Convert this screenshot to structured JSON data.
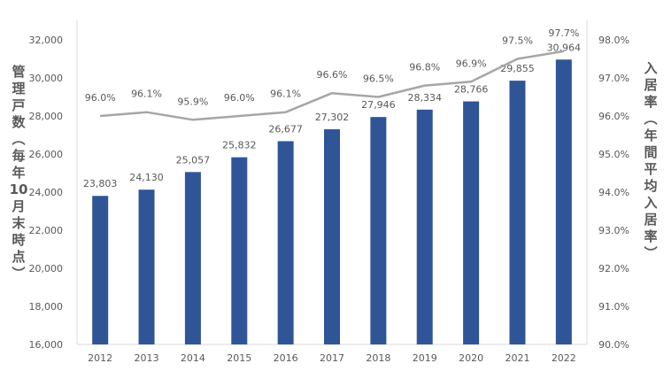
{
  "chart_data": {
    "type": "bar",
    "categories": [
      "2012",
      "2013",
      "2014",
      "2015",
      "2016",
      "2017",
      "2018",
      "2019",
      "2020",
      "2021",
      "2022"
    ],
    "series": [
      {
        "type": "bar",
        "axis": "left",
        "color": "#2f5597",
        "values": [
          23803,
          24130,
          25057,
          25832,
          26677,
          27302,
          27946,
          28334,
          28766,
          29855,
          30964
        ],
        "labels": [
          "23,803",
          "24,130",
          "25,057",
          "25,832",
          "26,677",
          "27,302",
          "27,946",
          "28,334",
          "28,766",
          "29,855",
          "30,964"
        ]
      },
      {
        "type": "line",
        "axis": "right",
        "color": "#a6a6a6",
        "values": [
          96.0,
          96.1,
          95.9,
          96.0,
          96.1,
          96.6,
          96.5,
          96.8,
          96.9,
          97.5,
          97.7
        ],
        "labels": [
          "96.0%",
          "96.1%",
          "95.9%",
          "96.0%",
          "96.1%",
          "96.6%",
          "96.5%",
          "96.8%",
          "96.9%",
          "97.5%",
          "97.7%"
        ]
      }
    ],
    "ylabel": "管理戸数（毎年10月末時点）",
    "ylabel_right": "入居率（年間平均入居率）",
    "ylim": [
      16000,
      32000
    ],
    "y_ticks": [
      16000,
      18000,
      20000,
      22000,
      24000,
      26000,
      28000,
      30000,
      32000
    ],
    "y_tick_labels": [
      "16,000",
      "18,000",
      "20,000",
      "22,000",
      "24,000",
      "26,000",
      "28,000",
      "30,000",
      "32,000"
    ],
    "ylim_right": [
      90.0,
      98.0
    ],
    "y2_ticks": [
      90,
      91,
      92,
      93,
      94,
      95,
      96,
      97,
      98
    ],
    "y2_tick_labels": [
      "90.0%",
      "91.0%",
      "92.0%",
      "93.0%",
      "94.0%",
      "95.0%",
      "96.0%",
      "97.0%",
      "98.0%"
    ],
    "grid": false,
    "legend": "none"
  },
  "ylabel_left_chars": [
    "管",
    "理",
    "戸",
    "数",
    "︵",
    "毎",
    "年",
    "10",
    "月",
    "末",
    "時",
    "点",
    "︶"
  ],
  "ylabel_right_chars": [
    "入",
    "居",
    "率",
    "︵",
    "年",
    "間",
    "平",
    "均",
    "入",
    "居",
    "率",
    "︶"
  ]
}
